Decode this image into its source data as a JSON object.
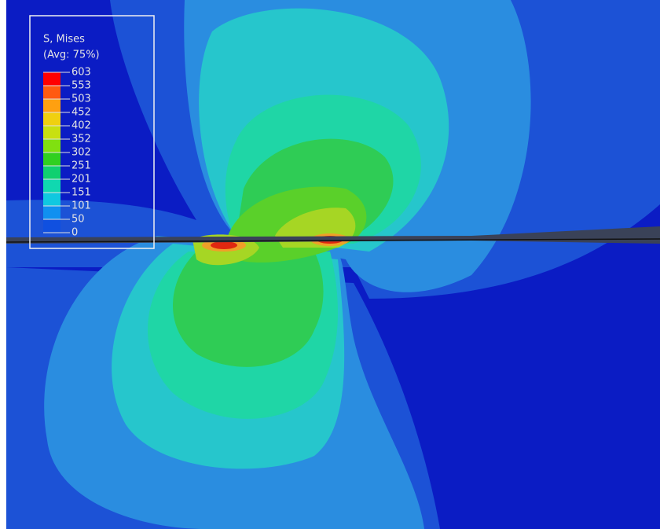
{
  "legend": {
    "title": "S, Mises",
    "subtitle": "(Avg: 75%)",
    "levels": [
      603,
      553,
      503,
      452,
      402,
      352,
      302,
      251,
      201,
      151,
      101,
      50,
      0
    ]
  }
}
